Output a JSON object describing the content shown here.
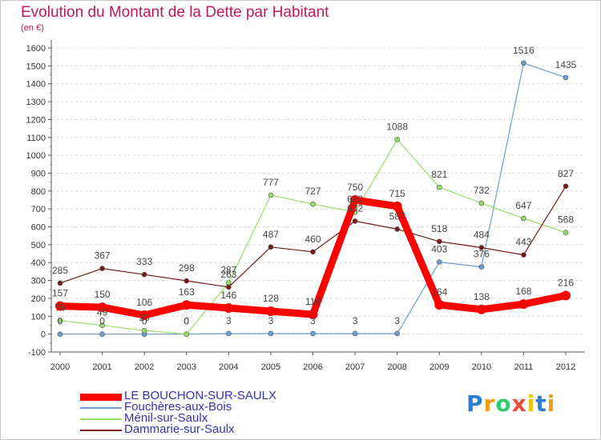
{
  "chart_data": {
    "type": "line",
    "title": "Evolution du Montant de la Dette par Habitant",
    "subtitle": "(en €)",
    "x": [
      "2000",
      "2001",
      "2002",
      "2003",
      "2004",
      "2005",
      "2006",
      "2007",
      "2008",
      "2009",
      "2010",
      "2011",
      "2012"
    ],
    "ylim": [
      -100,
      1600
    ],
    "yticks": [
      -100,
      0,
      100,
      200,
      300,
      400,
      500,
      600,
      700,
      800,
      900,
      1000,
      1100,
      1200,
      1300,
      1400,
      1500,
      1600
    ],
    "grid": "horizontal-dashed",
    "legend_position": "bottom-left",
    "series": [
      {
        "name": "LE BOUCHON-SUR-SAULX",
        "color": "#ff0000",
        "values": [
          157,
          150,
          106,
          163,
          146,
          128,
          110,
          750,
          715,
          164,
          138,
          168,
          216
        ]
      },
      {
        "name": "Fouchères-aux-Bois",
        "color": "#6a9fd0",
        "values": [
          0,
          0,
          0,
          0,
          3,
          3,
          3,
          3,
          3,
          403,
          376,
          1516,
          1435
        ]
      },
      {
        "name": "Ménil-sur-Saulx",
        "color": "#99dd66",
        "values": [
          76,
          49,
          20,
          0,
          287,
          777,
          727,
          682,
          1088,
          821,
          732,
          647,
          568
        ]
      },
      {
        "name": "Dammarie-sur-Saulx",
        "color": "#771a1a",
        "values": [
          285,
          367,
          333,
          298,
          263,
          487,
          460,
          632,
          587,
          518,
          484,
          443,
          827
        ]
      }
    ],
    "data_labels": [
      {
        "series": 0,
        "values": [
          "157",
          "150",
          "106",
          "163",
          "146",
          "128",
          "110",
          "750",
          "715",
          "164",
          "138",
          "168",
          "216"
        ]
      },
      {
        "series": 1,
        "values": [
          "0",
          "0",
          "0",
          "0",
          "3",
          "3",
          "3",
          "3",
          "3",
          "403",
          "376",
          "1516",
          "1435"
        ]
      },
      {
        "series": 2,
        "values": [
          "76",
          "49",
          "20",
          "0",
          "287",
          "777",
          "727",
          "682",
          "1088",
          "821",
          "732",
          "647",
          "568"
        ]
      },
      {
        "series": 3,
        "values": [
          "285",
          "367",
          "333",
          "298",
          "263",
          "487",
          "460",
          "632",
          "587",
          "518",
          "484",
          "443",
          "827"
        ]
      }
    ]
  },
  "logo": {
    "letters": [
      "P",
      "r",
      "o",
      "x",
      "i",
      "t",
      "i"
    ],
    "colors": [
      "#2a7fd4",
      "#f39c12",
      "#2ecc71",
      "#e74c3c",
      "#f1c40f",
      "#2a7fd4",
      "#f39c12"
    ]
  }
}
